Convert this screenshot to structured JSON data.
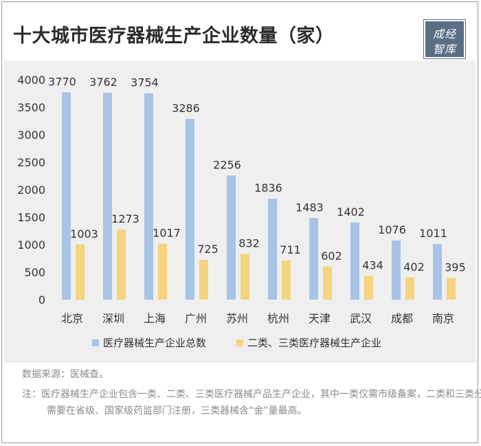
{
  "title": "十大城市医疗器械生产企业数量（家）",
  "logo": {
    "line1": "成经",
    "line2": "智库"
  },
  "colors": {
    "total": "#a7c3e6",
    "class23": "#f4d47e",
    "panel": "#efefef",
    "logo": "#5a6e86"
  },
  "chart_data": {
    "type": "bar",
    "categories": [
      "北京",
      "深圳",
      "上海",
      "广州",
      "苏州",
      "杭州",
      "天津",
      "武汉",
      "成都",
      "南京"
    ],
    "series": [
      {
        "name": "医疗器械生产企业总数",
        "values": [
          3770,
          3762,
          3754,
          3286,
          2256,
          1836,
          1483,
          1402,
          1076,
          1011
        ]
      },
      {
        "name": "二类、三类医疗器械生产企业",
        "values": [
          1003,
          1273,
          1017,
          725,
          832,
          711,
          602,
          434,
          402,
          395
        ]
      }
    ],
    "y_ticks": [
      "0",
      "500",
      "1000",
      "1500",
      "2000",
      "2500",
      "3000",
      "3500",
      "4000"
    ],
    "ylim": [
      0,
      4000
    ],
    "grid": false,
    "legend_position": "bottom"
  },
  "source": "数据来源：医械查。",
  "note": {
    "prefix": "注：",
    "text": "医疗器械生产企业包含一类、二类、三类医疗器械产品生产企业，其中一类仅需市级备案，二类和三类分别需要在省级、国家级药监部门注册，三类器械含“金”量最高。"
  }
}
